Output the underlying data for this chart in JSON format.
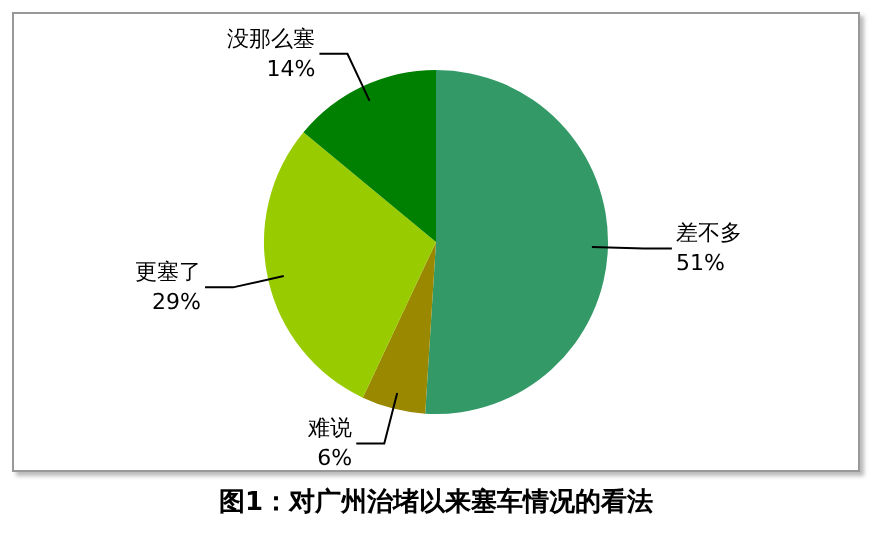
{
  "chart_data": {
    "type": "pie",
    "title": "图1：对广州治堵以来塞车情况的看法",
    "categories": [
      "差不多",
      "难说",
      "更塞了",
      "没那么塞"
    ],
    "values": [
      51,
      6,
      29,
      14
    ],
    "value_labels": [
      "51%",
      "6%",
      "29%",
      "14%"
    ],
    "colors": [
      "#339966",
      "#998800",
      "#99cc00",
      "#008000"
    ],
    "legend": false
  }
}
